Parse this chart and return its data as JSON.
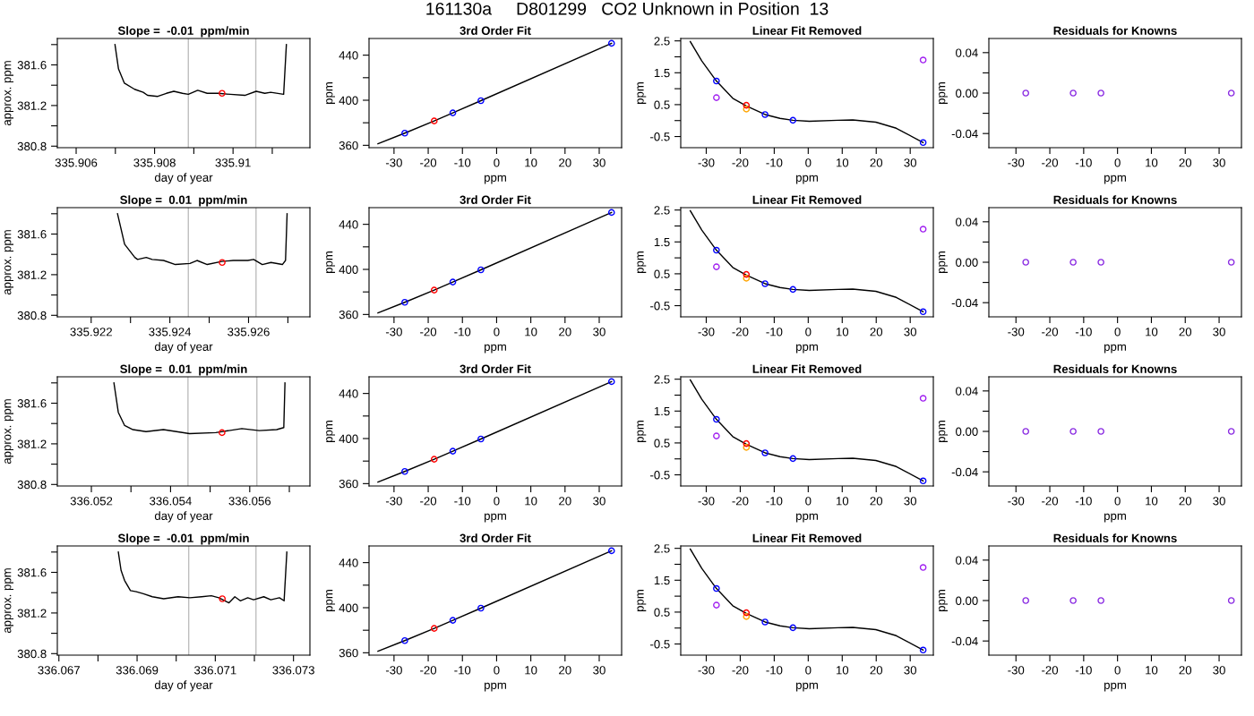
{
  "chart_data": [
    {
      "type": "line",
      "title": "Slope =  -0.01  ppm/min",
      "xlabel": "day of year",
      "ylabel": "approx. ppm",
      "annotations": [
        "161130a     D801299   CO2 Unknown in Position  13"
      ],
      "marker": "circle",
      "xlim": [
        335.90552,
        335.91196
      ],
      "xticks": [
        335.906,
        {
          "value": 335.907,
          "label": null
        },
        335.908,
        {
          "value": 335.909,
          "label": null
        },
        335.91,
        {
          "value": 335.911,
          "label": null
        }
      ],
      "ylim": [
        380.785,
        381.86
      ],
      "yticks": [
        380.8,
        {
          "value": 381.0,
          "label": null
        },
        381.2,
        {
          "value": 381.4,
          "label": null
        },
        381.6,
        {
          "value": 381.8,
          "label": null
        }
      ],
      "ref_lines": [
        {
          "axis": "x",
          "value": 335.90886,
          "color": "#bebebe"
        },
        {
          "axis": "x",
          "value": 335.91058,
          "color": "#bebebe"
        }
      ],
      "series": [
        {
          "color": "#000000",
          "marker": "none",
          "x": [
            335.90699,
            335.90708,
            335.90723,
            335.90749,
            335.90771,
            335.90782,
            335.90808,
            335.9083,
            335.90849,
            335.90871,
            335.90886,
            335.9091,
            335.90934,
            335.90963,
            335.90993,
            335.9103,
            335.91059,
            335.91081,
            335.91096,
            335.91129,
            335.91136
          ],
          "values": [
            381.8,
            381.56,
            381.42,
            381.36,
            381.33,
            381.3,
            381.29,
            381.32,
            381.34,
            381.32,
            381.31,
            381.35,
            381.32,
            381.32,
            381.31,
            381.3,
            381.34,
            381.32,
            381.33,
            381.31,
            381.8
          ]
        },
        {
          "type": "scatter",
          "color": "#ff0000",
          "x": [
            335.90972
          ],
          "values": [
            381.32
          ]
        }
      ]
    },
    {
      "type": "scatter",
      "title": "3rd Order Fit",
      "xlabel": "ppm",
      "ylabel": "ppm",
      "marker": "circle",
      "xlim": [
        -37.3,
        36.55
      ],
      "xticks": [
        -30,
        -20,
        -10,
        0,
        10,
        20,
        30
      ],
      "ylim": [
        357.9,
        454.8
      ],
      "yticks": [
        360,
        {
          "value": 380,
          "label": null
        },
        400,
        {
          "value": 420,
          "label": null
        },
        440
      ],
      "series": [
        {
          "type": "line",
          "color": "#000000",
          "marker": "none",
          "x": [
            -34.7,
            -26.85,
            -18.25,
            -12.8,
            -4.6,
            33.6
          ],
          "values": [
            361.3,
            370.8,
            381.6,
            388.8,
            399.6,
            450.5
          ]
        },
        {
          "color": "#0000ff",
          "x": [
            -26.85,
            -12.8,
            -4.6,
            33.6
          ],
          "values": [
            370.8,
            388.8,
            399.6,
            450.5
          ]
        },
        {
          "color": "#ff0000",
          "x": [
            -18.25
          ],
          "values": [
            381.6
          ]
        }
      ]
    },
    {
      "type": "scatter",
      "title": "Linear Fit Removed",
      "xlabel": "ppm",
      "ylabel": "ppm",
      "marker": "circle",
      "xlim": [
        -37.5,
        36.8
      ],
      "xticks": [
        -30,
        -20,
        -10,
        0,
        10,
        20,
        30
      ],
      "ylim": [
        -0.85,
        2.575
      ],
      "yticks": [
        -0.5,
        {
          "value": 0,
          "label": null
        },
        0.5,
        {
          "value": 1,
          "label": null
        },
        1.5,
        {
          "value": 2,
          "label": null
        },
        2.5
      ],
      "series": [
        {
          "type": "line",
          "color": "#000000",
          "marker": "none",
          "x": [
            -34.7,
            -31.3,
            -27.0,
            -22.2,
            -18.2,
            -12.7,
            -8.3,
            -4.5,
            0.3,
            8.8,
            13.1,
            19.9,
            25.9,
            33.8
          ],
          "values": [
            2.48,
            1.87,
            1.24,
            0.7,
            0.46,
            0.19,
            0.07,
            0.01,
            -0.02,
            0.01,
            0.02,
            -0.05,
            -0.24,
            -0.69
          ]
        },
        {
          "color": "#a020f0",
          "x": [
            -27.0,
            33.8
          ],
          "values": [
            0.72,
            1.9
          ]
        },
        {
          "color": "#0000ff",
          "x": [
            -27.0,
            -12.7,
            -4.5,
            33.8
          ],
          "values": [
            1.24,
            0.19,
            0.01,
            -0.69
          ]
        },
        {
          "color": "#ffa500",
          "x": [
            -18.2
          ],
          "values": [
            0.36
          ]
        },
        {
          "color": "#ff0000",
          "x": [
            -18.2
          ],
          "values": [
            0.48
          ]
        }
      ]
    },
    {
      "type": "scatter",
      "title": "Residuals for Knowns",
      "xlabel": "ppm",
      "ylabel": "ppm",
      "marker": "circle",
      "xlim": [
        -38.0,
        36.6
      ],
      "xticks": [
        -30,
        -20,
        -10,
        0,
        10,
        20,
        30
      ],
      "ylim": [
        -0.054,
        0.054
      ],
      "yticks": [
        -0.04,
        {
          "value": -0.02,
          "label": null
        },
        {
          "value": 0,
          "label": "0.00"
        },
        {
          "value": 0.02,
          "label": null
        },
        0.04
      ],
      "series": [
        {
          "color": "#8a2be2",
          "x": [
            -27.1,
            -13.1,
            -4.9,
            33.6
          ],
          "values": [
            0,
            0,
            0,
            0
          ]
        }
      ]
    },
    {
      "type": "line",
      "title": "Slope =  0.01  ppm/min",
      "xlabel": "day of year",
      "ylabel": "approx. ppm",
      "marker": "circle",
      "xlim": [
        335.92114,
        335.92756
      ],
      "xticks": [
        335.922,
        {
          "value": 335.923,
          "label": null
        },
        335.924,
        {
          "value": 335.925,
          "label": null
        },
        335.926,
        {
          "value": 335.927,
          "label": null
        }
      ],
      "ylim": [
        380.785,
        381.86
      ],
      "yticks": [
        380.8,
        {
          "value": 381.0,
          "label": null
        },
        381.2,
        {
          "value": 381.4,
          "label": null
        },
        381.6,
        {
          "value": 381.8,
          "label": null
        }
      ],
      "ref_lines": [
        {
          "axis": "x",
          "value": 335.92447,
          "color": "#bebebe"
        },
        {
          "axis": "x",
          "value": 335.92619,
          "color": "#bebebe"
        }
      ],
      "series": [
        {
          "color": "#000000",
          "marker": "none",
          "x": [
            335.92267,
            335.92285,
            335.92311,
            335.92318,
            335.9234,
            335.92355,
            335.92384,
            335.92414,
            335.92451,
            335.92469,
            335.92495,
            335.92532,
            335.92561,
            335.92598,
            335.92613,
            335.92635,
            335.92657,
            335.92686,
            335.92694,
            335.92698
          ],
          "values": [
            381.8,
            381.5,
            381.37,
            381.35,
            381.37,
            381.35,
            381.34,
            381.3,
            381.31,
            381.34,
            381.3,
            381.33,
            381.34,
            381.34,
            381.35,
            381.3,
            381.32,
            381.3,
            381.34,
            381.8
          ]
        },
        {
          "type": "scatter",
          "color": "#ff0000",
          "x": [
            335.92533
          ],
          "values": [
            381.32
          ]
        }
      ]
    },
    {
      "type": "scatter",
      "title": "3rd Order Fit",
      "xlabel": "ppm",
      "ylabel": "ppm",
      "marker": "circle",
      "xlim": [
        -37.3,
        36.55
      ],
      "xticks": [
        -30,
        -20,
        -10,
        0,
        10,
        20,
        30
      ],
      "ylim": [
        357.9,
        454.8
      ],
      "yticks": [
        360,
        {
          "value": 380,
          "label": null
        },
        400,
        {
          "value": 420,
          "label": null
        },
        440
      ],
      "series": [
        {
          "type": "line",
          "color": "#000000",
          "marker": "none",
          "x": [
            -34.7,
            -26.85,
            -18.25,
            -12.8,
            -4.6,
            33.6
          ],
          "values": [
            361.3,
            370.8,
            381.6,
            388.8,
            399.6,
            450.5
          ]
        },
        {
          "color": "#0000ff",
          "x": [
            -26.85,
            -12.8,
            -4.6,
            33.6
          ],
          "values": [
            370.8,
            388.8,
            399.6,
            450.5
          ]
        },
        {
          "color": "#ff0000",
          "x": [
            -18.25
          ],
          "values": [
            381.6
          ]
        }
      ]
    },
    {
      "type": "scatter",
      "title": "Linear Fit Removed",
      "xlabel": "ppm",
      "ylabel": "ppm",
      "marker": "circle",
      "xlim": [
        -37.5,
        36.8
      ],
      "xticks": [
        -30,
        -20,
        -10,
        0,
        10,
        20,
        30
      ],
      "ylim": [
        -0.85,
        2.575
      ],
      "yticks": [
        -0.5,
        {
          "value": 0,
          "label": null
        },
        0.5,
        {
          "value": 1,
          "label": null
        },
        1.5,
        {
          "value": 2,
          "label": null
        },
        2.5
      ],
      "series": [
        {
          "type": "line",
          "color": "#000000",
          "marker": "none",
          "x": [
            -34.7,
            -31.3,
            -27.0,
            -22.2,
            -18.2,
            -12.7,
            -8.3,
            -4.5,
            0.3,
            8.8,
            13.1,
            19.9,
            25.9,
            33.8
          ],
          "values": [
            2.48,
            1.87,
            1.24,
            0.7,
            0.46,
            0.19,
            0.07,
            0.01,
            -0.02,
            0.01,
            0.02,
            -0.05,
            -0.24,
            -0.69
          ]
        },
        {
          "color": "#a020f0",
          "x": [
            -27.0,
            33.8
          ],
          "values": [
            0.72,
            1.9
          ]
        },
        {
          "color": "#0000ff",
          "x": [
            -27.0,
            -12.7,
            -4.5,
            33.8
          ],
          "values": [
            1.24,
            0.19,
            0.01,
            -0.69
          ]
        },
        {
          "color": "#ffa500",
          "x": [
            -18.2
          ],
          "values": [
            0.36
          ]
        },
        {
          "color": "#ff0000",
          "x": [
            -18.2
          ],
          "values": [
            0.48
          ]
        }
      ]
    },
    {
      "type": "scatter",
      "title": "Residuals for Knowns",
      "xlabel": "ppm",
      "ylabel": "ppm",
      "marker": "circle",
      "xlim": [
        -38.0,
        36.6
      ],
      "xticks": [
        -30,
        -20,
        -10,
        0,
        10,
        20,
        30
      ],
      "ylim": [
        -0.054,
        0.054
      ],
      "yticks": [
        -0.04,
        {
          "value": -0.02,
          "label": null
        },
        {
          "value": 0,
          "label": "0.00"
        },
        {
          "value": 0.02,
          "label": null
        },
        0.04
      ],
      "series": [
        {
          "color": "#8a2be2",
          "x": [
            -27.1,
            -13.1,
            -4.9,
            33.6
          ],
          "values": [
            0,
            0,
            0,
            0
          ]
        }
      ]
    },
    {
      "type": "line",
      "title": "Slope =  0.01  ppm/min",
      "xlabel": "day of year",
      "ylabel": "approx. ppm",
      "marker": "circle",
      "xlim": [
        336.05114,
        336.05752
      ],
      "xticks": [
        336.052,
        {
          "value": 336.053,
          "label": null
        },
        336.054,
        {
          "value": 336.055,
          "label": null
        },
        336.056,
        {
          "value": 336.057,
          "label": null
        }
      ],
      "ylim": [
        380.785,
        381.86
      ],
      "yticks": [
        380.8,
        {
          "value": 381.0,
          "label": null
        },
        381.2,
        {
          "value": 381.4,
          "label": null
        },
        381.6,
        {
          "value": 381.8,
          "label": null
        }
      ],
      "ref_lines": [
        {
          "axis": "x",
          "value": 336.05444,
          "color": "#bebebe"
        },
        {
          "axis": "x",
          "value": 336.05618,
          "color": "#bebebe"
        }
      ],
      "series": [
        {
          "color": "#000000",
          "marker": "none",
          "x": [
            336.05257,
            336.05268,
            336.05284,
            336.05305,
            336.05338,
            336.05382,
            336.05448,
            336.05514,
            336.0558,
            336.05624,
            336.05668,
            336.05686,
            336.05689
          ],
          "values": [
            381.8,
            381.51,
            381.38,
            381.34,
            381.32,
            381.34,
            381.3,
            381.31,
            381.35,
            381.33,
            381.34,
            381.36,
            381.8
          ]
        },
        {
          "type": "scatter",
          "color": "#ff0000",
          "x": [
            336.0553
          ],
          "values": [
            381.31
          ]
        }
      ]
    },
    {
      "type": "scatter",
      "title": "3rd Order Fit",
      "xlabel": "ppm",
      "ylabel": "ppm",
      "marker": "circle",
      "xlim": [
        -37.3,
        36.55
      ],
      "xticks": [
        -30,
        -20,
        -10,
        0,
        10,
        20,
        30
      ],
      "ylim": [
        357.9,
        454.8
      ],
      "yticks": [
        360,
        {
          "value": 380,
          "label": null
        },
        400,
        {
          "value": 420,
          "label": null
        },
        440
      ],
      "series": [
        {
          "type": "line",
          "color": "#000000",
          "marker": "none",
          "x": [
            -34.7,
            -26.85,
            -18.25,
            -12.8,
            -4.6,
            33.6
          ],
          "values": [
            361.3,
            370.8,
            381.6,
            388.8,
            399.6,
            450.5
          ]
        },
        {
          "color": "#0000ff",
          "x": [
            -26.85,
            -12.8,
            -4.6,
            33.6
          ],
          "values": [
            370.8,
            388.8,
            399.6,
            450.5
          ]
        },
        {
          "color": "#ff0000",
          "x": [
            -18.25
          ],
          "values": [
            381.6
          ]
        }
      ]
    },
    {
      "type": "scatter",
      "title": "Linear Fit Removed",
      "xlabel": "ppm",
      "ylabel": "ppm",
      "marker": "circle",
      "xlim": [
        -37.5,
        36.8
      ],
      "xticks": [
        -30,
        -20,
        -10,
        0,
        10,
        20,
        30
      ],
      "ylim": [
        -0.85,
        2.575
      ],
      "yticks": [
        -0.5,
        {
          "value": 0,
          "label": null
        },
        0.5,
        {
          "value": 1,
          "label": null
        },
        1.5,
        {
          "value": 2,
          "label": null
        },
        2.5
      ],
      "series": [
        {
          "type": "line",
          "color": "#000000",
          "marker": "none",
          "x": [
            -34.7,
            -31.3,
            -27.0,
            -22.2,
            -18.2,
            -12.7,
            -8.3,
            -4.5,
            0.3,
            8.8,
            13.1,
            19.9,
            25.9,
            33.8
          ],
          "values": [
            2.48,
            1.87,
            1.24,
            0.7,
            0.46,
            0.19,
            0.07,
            0.01,
            -0.02,
            0.01,
            0.02,
            -0.05,
            -0.24,
            -0.69
          ]
        },
        {
          "color": "#a020f0",
          "x": [
            -27.0,
            33.8
          ],
          "values": [
            0.72,
            1.9
          ]
        },
        {
          "color": "#0000ff",
          "x": [
            -27.0,
            -12.7,
            -4.5,
            33.8
          ],
          "values": [
            1.24,
            0.19,
            0.01,
            -0.69
          ]
        },
        {
          "color": "#ffa500",
          "x": [
            -18.2
          ],
          "values": [
            0.36
          ]
        },
        {
          "color": "#ff0000",
          "x": [
            -18.2
          ],
          "values": [
            0.48
          ]
        }
      ]
    },
    {
      "type": "scatter",
      "title": "Residuals for Knowns",
      "xlabel": "ppm",
      "ylabel": "ppm",
      "marker": "circle",
      "xlim": [
        -38.0,
        36.6
      ],
      "xticks": [
        -30,
        -20,
        -10,
        0,
        10,
        20,
        30
      ],
      "ylim": [
        -0.054,
        0.054
      ],
      "yticks": [
        -0.04,
        {
          "value": -0.02,
          "label": null
        },
        {
          "value": 0,
          "label": "0.00"
        },
        {
          "value": 0.02,
          "label": null
        },
        0.04
      ],
      "series": [
        {
          "color": "#8a2be2",
          "x": [
            -27.1,
            -13.1,
            -4.9,
            33.6
          ],
          "values": [
            0,
            0,
            0,
            0
          ]
        }
      ]
    },
    {
      "type": "line",
      "title": "Slope =  -0.01  ppm/min",
      "xlabel": "day of year",
      "ylabel": "approx. ppm",
      "marker": "circle",
      "xlim": [
        336.06696,
        336.07342
      ],
      "xticks": [
        336.067,
        {
          "value": 336.068,
          "label": null
        },
        336.069,
        {
          "value": 336.07,
          "label": null
        },
        336.071,
        {
          "value": 336.072,
          "label": null
        },
        336.073
      ],
      "ylim": [
        380.785,
        381.86
      ],
      "yticks": [
        380.8,
        {
          "value": 381.0,
          "label": null
        },
        381.2,
        {
          "value": 381.4,
          "label": null
        },
        381.6,
        {
          "value": 381.8,
          "label": null
        }
      ],
      "ref_lines": [
        {
          "axis": "x",
          "value": 336.07032,
          "color": "#bebebe"
        },
        {
          "axis": "x",
          "value": 336.07204,
          "color": "#bebebe"
        }
      ],
      "series": [
        {
          "color": "#000000",
          "marker": "none",
          "x": [
            336.06852,
            336.06859,
            336.06868,
            336.06883,
            336.06898,
            336.06916,
            336.06939,
            336.06968,
            336.07005,
            336.07035,
            336.07065,
            336.0709,
            336.07109,
            336.07135,
            336.0715,
            336.07164,
            336.07183,
            336.07198,
            336.07224,
            336.07242,
            336.07264,
            336.07276,
            336.07283
          ],
          "values": [
            381.8,
            381.62,
            381.52,
            381.42,
            381.41,
            381.39,
            381.36,
            381.34,
            381.36,
            381.35,
            381.36,
            381.37,
            381.35,
            381.3,
            381.36,
            381.32,
            381.35,
            381.33,
            381.36,
            381.33,
            381.35,
            381.32,
            381.8
          ]
        },
        {
          "type": "scatter",
          "color": "#ff0000",
          "x": [
            336.07118
          ],
          "values": [
            381.34
          ]
        }
      ]
    },
    {
      "type": "scatter",
      "title": "3rd Order Fit",
      "xlabel": "ppm",
      "ylabel": "ppm",
      "marker": "circle",
      "xlim": [
        -37.3,
        36.55
      ],
      "xticks": [
        -30,
        -20,
        -10,
        0,
        10,
        20,
        30
      ],
      "ylim": [
        357.9,
        454.8
      ],
      "yticks": [
        360,
        {
          "value": 380,
          "label": null
        },
        400,
        {
          "value": 420,
          "label": null
        },
        440
      ],
      "series": [
        {
          "type": "line",
          "color": "#000000",
          "marker": "none",
          "x": [
            -34.7,
            -26.85,
            -18.25,
            -12.8,
            -4.6,
            33.6
          ],
          "values": [
            361.3,
            370.8,
            381.6,
            388.8,
            399.6,
            450.5
          ]
        },
        {
          "color": "#0000ff",
          "x": [
            -26.85,
            -12.8,
            -4.6,
            33.6
          ],
          "values": [
            370.8,
            388.8,
            399.6,
            450.5
          ]
        },
        {
          "color": "#ff0000",
          "x": [
            -18.25
          ],
          "values": [
            381.6
          ]
        }
      ]
    },
    {
      "type": "scatter",
      "title": "Linear Fit Removed",
      "xlabel": "ppm",
      "ylabel": "ppm",
      "marker": "circle",
      "xlim": [
        -37.5,
        36.8
      ],
      "xticks": [
        -30,
        -20,
        -10,
        0,
        10,
        20,
        30
      ],
      "ylim": [
        -0.85,
        2.575
      ],
      "yticks": [
        -0.5,
        {
          "value": 0,
          "label": null
        },
        0.5,
        {
          "value": 1,
          "label": null
        },
        1.5,
        {
          "value": 2,
          "label": null
        },
        2.5
      ],
      "series": [
        {
          "type": "line",
          "color": "#000000",
          "marker": "none",
          "x": [
            -34.7,
            -31.3,
            -27.0,
            -22.2,
            -18.2,
            -12.7,
            -8.3,
            -4.5,
            0.3,
            8.8,
            13.1,
            19.9,
            25.9,
            33.8
          ],
          "values": [
            2.48,
            1.87,
            1.24,
            0.7,
            0.46,
            0.19,
            0.07,
            0.01,
            -0.02,
            0.01,
            0.02,
            -0.05,
            -0.24,
            -0.69
          ]
        },
        {
          "color": "#a020f0",
          "x": [
            -27.0,
            33.8
          ],
          "values": [
            0.72,
            1.9
          ]
        },
        {
          "color": "#0000ff",
          "x": [
            -27.0,
            -12.7,
            -4.5,
            33.8
          ],
          "values": [
            1.24,
            0.19,
            0.01,
            -0.69
          ]
        },
        {
          "color": "#ffa500",
          "x": [
            -18.2
          ],
          "values": [
            0.36
          ]
        },
        {
          "color": "#ff0000",
          "x": [
            -18.2
          ],
          "values": [
            0.48
          ]
        }
      ]
    },
    {
      "type": "scatter",
      "title": "Residuals for Knowns",
      "xlabel": "ppm",
      "ylabel": "ppm",
      "marker": "circle",
      "xlim": [
        -38.0,
        36.6
      ],
      "xticks": [
        -30,
        -20,
        -10,
        0,
        10,
        20,
        30
      ],
      "ylim": [
        -0.054,
        0.054
      ],
      "yticks": [
        -0.04,
        {
          "value": -0.02,
          "label": null
        },
        {
          "value": 0,
          "label": "0.00"
        },
        {
          "value": 0.02,
          "label": null
        },
        0.04
      ],
      "series": [
        {
          "color": "#8a2be2",
          "x": [
            -27.1,
            -13.1,
            -4.9,
            33.6
          ],
          "values": [
            0,
            0,
            0,
            0
          ]
        }
      ]
    }
  ]
}
